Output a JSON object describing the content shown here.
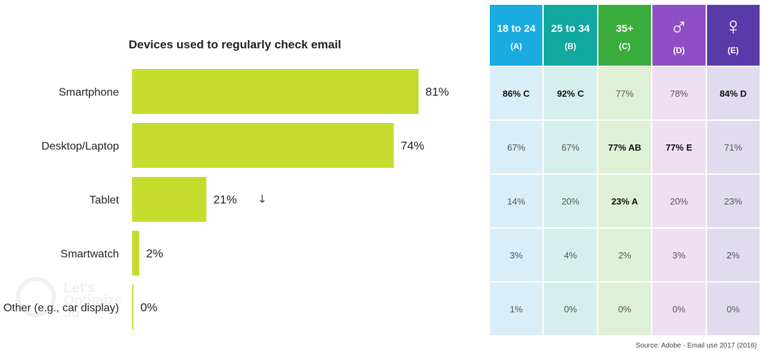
{
  "chart_data": {
    "type": "bar",
    "orientation": "horizontal",
    "title": "Devices used to regularly check email",
    "categories": [
      "Smartphone",
      "Desktop/Laptop",
      "Tablet",
      "Smartwatch",
      "Other (e.g., car display)"
    ],
    "values": [
      81,
      74,
      21,
      2,
      0
    ],
    "value_labels": [
      "81%",
      "74%",
      "21%",
      "2%",
      "0%"
    ],
    "xlim": [
      0,
      100
    ],
    "grid": false,
    "annotations": [
      {
        "category": "Tablet",
        "text": "↓"
      }
    ],
    "color": "#c5dc2c"
  },
  "table": {
    "headers": [
      {
        "label": "18 to 24",
        "code": "(A)",
        "color": "#1aabe0",
        "symbol": ""
      },
      {
        "label": "25 to 34",
        "code": "(B)",
        "color": "#11a8a0",
        "symbol": ""
      },
      {
        "label": "35+",
        "code": "(C)",
        "color": "#3aac3c",
        "symbol": ""
      },
      {
        "label": "",
        "code": "(D)",
        "color": "#8e4fc4",
        "symbol": "♂"
      },
      {
        "label": "",
        "code": "(E)",
        "color": "#5a3aa8",
        "symbol": "♀"
      }
    ],
    "column_tints": [
      "#d9eef8",
      "#d7efec",
      "#dff0d6",
      "#eedff2",
      "#e0dbef"
    ],
    "rows": [
      [
        {
          "text": "86% C",
          "bold": true
        },
        {
          "text": "92% C",
          "bold": true
        },
        {
          "text": "77%",
          "bold": false
        },
        {
          "text": "78%",
          "bold": false
        },
        {
          "text": "84% D",
          "bold": true
        }
      ],
      [
        {
          "text": "67%",
          "bold": false
        },
        {
          "text": "67%",
          "bold": false
        },
        {
          "text": "77% AB",
          "bold": true
        },
        {
          "text": "77% E",
          "bold": true
        },
        {
          "text": "71%",
          "bold": false
        }
      ],
      [
        {
          "text": "14%",
          "bold": false
        },
        {
          "text": "20%",
          "bold": false
        },
        {
          "text": "23% A",
          "bold": true
        },
        {
          "text": "20%",
          "bold": false
        },
        {
          "text": "23%",
          "bold": false
        }
      ],
      [
        {
          "text": "3%",
          "bold": false
        },
        {
          "text": "4%",
          "bold": false
        },
        {
          "text": "2%",
          "bold": false
        },
        {
          "text": "3%",
          "bold": false
        },
        {
          "text": "2%",
          "bold": false
        }
      ],
      [
        {
          "text": "1%",
          "bold": false
        },
        {
          "text": "0%",
          "bold": false
        },
        {
          "text": "0%",
          "bold": false
        },
        {
          "text": "0%",
          "bold": false
        },
        {
          "text": "0%",
          "bold": false
        }
      ]
    ]
  },
  "source": "Source: Adobe - Email use 2017 (2016)",
  "watermark": "Let's Optimize .io"
}
